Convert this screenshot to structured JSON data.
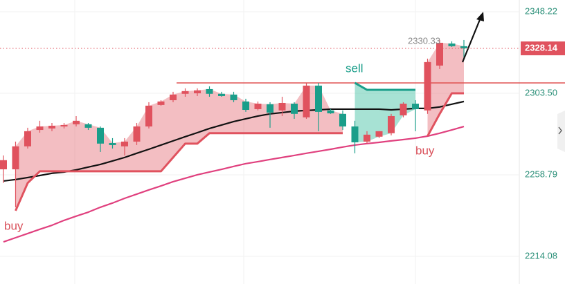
{
  "chart_data": {
    "type": "candlestick",
    "open": [
      2261.8,
      2261.8,
      2274.4,
      2283.4,
      2284.2,
      2285.3,
      2286.5,
      2286.5,
      2284.6,
      2276.2,
      2274.4,
      2277.0,
      2285.3,
      2297.1,
      2299.7,
      2303.2,
      2303.5,
      2305.8,
      2303.2,
      2302.8,
      2299.0,
      2294.8,
      2297.5,
      2294.1,
      2297.8,
      2290.3,
      2307.7,
      2294.1,
      2292.2,
      2285.3,
      2277.0,
      2279.7,
      2281.6,
      2291.4,
      2297.8,
      2294.1,
      2318.7,
      2330.8,
      2329.3
    ],
    "high": [
      2269.4,
      2277.0,
      2284.6,
      2288.4,
      2287.2,
      2287.2,
      2291.0,
      2287.2,
      2285.3,
      2278.9,
      2278.9,
      2287.2,
      2298.6,
      2299.7,
      2304.3,
      2306.2,
      2306.2,
      2307.3,
      2304.3,
      2304.3,
      2300.5,
      2299.0,
      2298.6,
      2301.6,
      2298.6,
      2309.2,
      2309.2,
      2294.8,
      2294.1,
      2288.4,
      2282.7,
      2282.7,
      2292.2,
      2298.6,
      2299.7,
      2322.5,
      2332.7,
      2332.0,
      2332.7
    ],
    "low": [
      2254.3,
      2241.0,
      2273.2,
      2281.9,
      2282.7,
      2284.2,
      2285.3,
      2283.4,
      2271.3,
      2273.2,
      2269.4,
      2275.1,
      2284.2,
      2296.7,
      2298.6,
      2301.6,
      2302.0,
      2301.6,
      2301.6,
      2298.6,
      2293.3,
      2294.1,
      2284.6,
      2291.0,
      2289.5,
      2289.5,
      2282.7,
      2292.2,
      2283.4,
      2270.6,
      2275.9,
      2278.9,
      2280.4,
      2290.3,
      2282.7,
      2292.2,
      2316.8,
      2328.9,
      2322.5
    ],
    "close": [
      2266.8,
      2274.4,
      2282.7,
      2285.3,
      2285.7,
      2286.1,
      2288.4,
      2284.6,
      2275.9,
      2275.1,
      2277.0,
      2285.3,
      2296.7,
      2299.0,
      2302.8,
      2304.7,
      2305.1,
      2303.2,
      2302.0,
      2299.7,
      2294.4,
      2297.8,
      2292.9,
      2298.2,
      2292.2,
      2307.7,
      2293.3,
      2292.5,
      2285.3,
      2276.6,
      2280.8,
      2282.7,
      2291.0,
      2297.8,
      2294.8,
      2320.6,
      2331.2,
      2329.3,
      2328.14
    ],
    "up_color": "#e0525e",
    "down_color": "#1a9e8a",
    "lines": [
      {
        "color": "#111111",
        "values": [
          2255.4,
          2256.2,
          2257.3,
          2258.4,
          2259.6,
          2260.3,
          2261.5,
          2263.0,
          2264.5,
          2266.4,
          2268.3,
          2270.6,
          2272.8,
          2275.1,
          2277.4,
          2279.7,
          2281.9,
          2284.2,
          2286.1,
          2288.0,
          2289.5,
          2291.0,
          2292.2,
          2292.9,
          2293.7,
          2294.1,
          2294.4,
          2294.8,
          2294.8,
          2294.8,
          2294.8,
          2294.8,
          2294.4,
          2294.8,
          2295.2,
          2295.2,
          2296.0,
          2297.5,
          2299.0
        ]
      },
      {
        "color": "#e0407e",
        "values": [
          2222.0,
          2224.3,
          2226.6,
          2228.9,
          2231.1,
          2233.8,
          2236.1,
          2238.3,
          2241.0,
          2243.3,
          2245.9,
          2248.2,
          2250.5,
          2252.7,
          2255.0,
          2256.9,
          2258.8,
          2260.3,
          2261.8,
          2263.4,
          2264.9,
          2266.0,
          2267.2,
          2268.3,
          2269.4,
          2270.6,
          2271.7,
          2272.8,
          2274.0,
          2275.1,
          2275.9,
          2276.6,
          2277.4,
          2278.1,
          2278.9,
          2280.0,
          2281.6,
          2283.4,
          2285.3
        ]
      }
    ],
    "trails": [
      {
        "color": "#e0525e",
        "fill": "rgba(228,110,120,0.45)",
        "values": [
          null,
          2239.1,
          2254.3,
          2260.7,
          2260.7,
          2260.7,
          2260.7,
          2260.7,
          2260.7,
          2260.7,
          2260.7,
          2260.7,
          2260.7,
          2260.7,
          2268.3,
          2275.9,
          2275.9,
          2281.6,
          2281.6,
          2281.6,
          2281.6,
          2281.6,
          2281.6,
          2281.6,
          2281.6,
          2281.6,
          2281.6,
          2281.6,
          2281.6,
          null,
          null,
          null,
          null,
          null,
          null,
          2280.0,
          2292.2,
          2303.5,
          2303.5
        ]
      },
      {
        "color": "#1a9e8a",
        "fill": "rgba(60,190,160,0.45)",
        "values": [
          null,
          null,
          null,
          null,
          null,
          null,
          null,
          null,
          null,
          null,
          null,
          null,
          null,
          null,
          null,
          null,
          null,
          null,
          null,
          null,
          null,
          null,
          null,
          null,
          null,
          null,
          null,
          null,
          null,
          2309.2,
          2305.4,
          2305.4,
          2305.4,
          2305.4,
          2305.4,
          null,
          null,
          null,
          null
        ]
      }
    ],
    "level": 2309.2,
    "level_color": "#e05050",
    "last_price": 2328.14,
    "marked_high": 2330.33,
    "signals": [
      "buy",
      "sell",
      "buy"
    ],
    "ylim": [
      2198.9,
      2354.66
    ],
    "yticks": [
      2348.22,
      {
        "value": 2303.5,
        "label": "2303.50"
      },
      2258.79,
      2214.08
    ],
    "grid": true
  }
}
